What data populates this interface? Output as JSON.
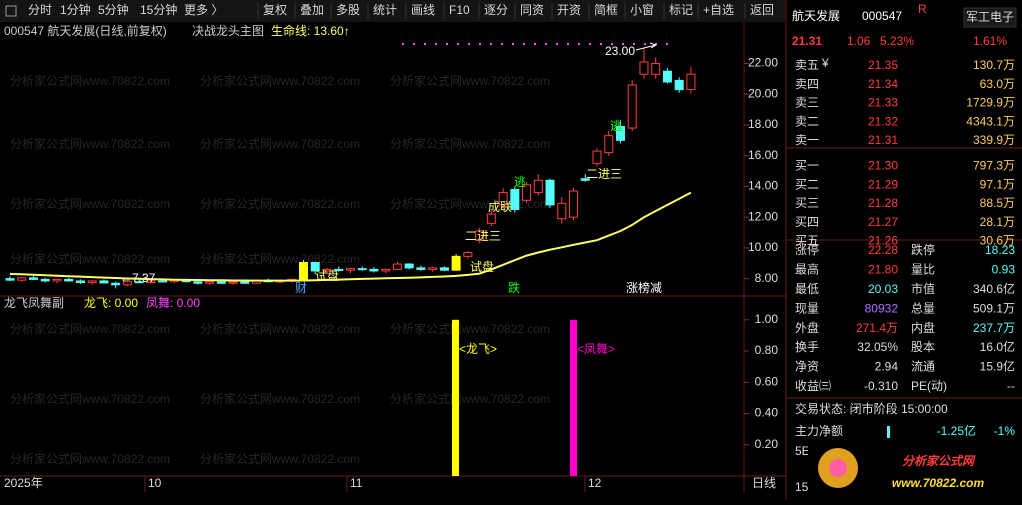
{
  "toolbar": [
    "分时",
    "1分钟",
    "5分钟",
    "15分钟",
    "更多 〉",
    "复权",
    "叠加",
    "多股",
    "统计",
    "画线",
    "F10",
    "逐分",
    "同资",
    "开资",
    "简框",
    "小窗",
    "标记",
    "+自选",
    "返回"
  ],
  "info": {
    "code_name": "000547 航天发展(日线,前复权)",
    "indicator": "决战龙头主图",
    "lifeline": "生命线: 13.60↑"
  },
  "watermark": "分析家公式网www.70822.com",
  "chart": {
    "yticks": [
      {
        "value": 22,
        "label": "22.00"
      },
      {
        "value": 20,
        "label": "20.00"
      },
      {
        "value": 18,
        "label": "18.00"
      },
      {
        "value": 16,
        "label": "16.00"
      },
      {
        "value": 14,
        "label": "14.00"
      },
      {
        "value": 12,
        "label": "12.00"
      },
      {
        "value": 10,
        "label": "10.00"
      },
      {
        "value": 8,
        "label": "8.00"
      }
    ],
    "ylim": [
      7.0,
      23.4
    ],
    "up_color": "#ff3c3c",
    "down_color": "#54fcfc",
    "highlight_color": "#ffff00",
    "highlighted": [
      25,
      38
    ],
    "line_color": "#ffff66",
    "candles": [
      [
        8.0,
        8.15,
        7.85,
        7.9
      ],
      [
        7.9,
        8.1,
        7.8,
        8.05
      ],
      [
        8.05,
        8.2,
        7.9,
        7.95
      ],
      [
        7.95,
        8.05,
        7.75,
        7.85
      ],
      [
        7.85,
        8.0,
        7.7,
        7.95
      ],
      [
        7.95,
        8.05,
        7.8,
        7.85
      ],
      [
        7.85,
        7.95,
        7.65,
        7.75
      ],
      [
        7.75,
        7.9,
        7.6,
        7.85
      ],
      [
        7.85,
        7.95,
        7.7,
        7.72
      ],
      [
        7.7,
        7.8,
        7.37,
        7.6
      ],
      [
        7.6,
        7.85,
        7.5,
        7.8
      ],
      [
        7.8,
        7.95,
        7.7,
        7.75
      ],
      [
        7.75,
        7.9,
        7.65,
        7.85
      ],
      [
        7.85,
        8.0,
        7.75,
        7.8
      ],
      [
        7.8,
        7.95,
        7.7,
        7.9
      ],
      [
        7.9,
        8.0,
        7.75,
        7.8
      ],
      [
        7.8,
        7.9,
        7.6,
        7.7
      ],
      [
        7.7,
        7.85,
        7.6,
        7.8
      ],
      [
        7.8,
        7.9,
        7.65,
        7.7
      ],
      [
        7.7,
        7.85,
        7.6,
        7.78
      ],
      [
        7.78,
        7.9,
        7.65,
        7.7
      ],
      [
        7.7,
        7.95,
        7.65,
        7.9
      ],
      [
        7.9,
        8.0,
        7.75,
        7.8
      ],
      [
        7.8,
        7.95,
        7.7,
        7.85
      ],
      [
        7.85,
        8.0,
        7.75,
        7.95
      ],
      [
        7.95,
        9.2,
        7.9,
        9.05
      ],
      [
        9.05,
        9.1,
        8.3,
        8.5
      ],
      [
        8.5,
        8.7,
        8.3,
        8.6
      ],
      [
        8.6,
        8.8,
        8.45,
        8.55
      ],
      [
        8.55,
        8.7,
        8.35,
        8.65
      ],
      [
        8.65,
        8.8,
        8.5,
        8.6
      ],
      [
        8.6,
        8.75,
        8.4,
        8.5
      ],
      [
        8.5,
        8.65,
        8.35,
        8.6
      ],
      [
        8.6,
        9.1,
        8.55,
        8.95
      ],
      [
        8.95,
        9.0,
        8.6,
        8.7
      ],
      [
        8.7,
        8.85,
        8.5,
        8.6
      ],
      [
        8.6,
        8.75,
        8.45,
        8.7
      ],
      [
        8.7,
        8.8,
        8.5,
        8.55
      ],
      [
        8.55,
        9.6,
        8.5,
        9.45
      ],
      [
        9.45,
        9.8,
        9.3,
        9.7
      ],
      [
        10.5,
        11.3,
        10.3,
        11.1
      ],
      [
        11.6,
        12.4,
        11.4,
        12.2
      ],
      [
        12.8,
        13.9,
        12.6,
        13.6
      ],
      [
        13.8,
        14.0,
        12.3,
        12.5
      ],
      [
        13.1,
        14.3,
        12.9,
        14.1
      ],
      [
        13.6,
        14.8,
        13.4,
        14.4
      ],
      [
        14.4,
        14.5,
        12.6,
        12.8
      ],
      [
        11.9,
        13.3,
        11.6,
        12.9
      ],
      [
        12.0,
        13.9,
        11.8,
        13.7
      ],
      [
        14.5,
        14.8,
        14.3,
        14.4
      ],
      [
        15.5,
        16.5,
        15.3,
        16.3
      ],
      [
        16.2,
        17.6,
        16.0,
        17.3
      ],
      [
        17.9,
        18.3,
        16.8,
        17.0
      ],
      [
        17.8,
        20.9,
        17.6,
        20.6
      ],
      [
        21.3,
        23.0,
        21.0,
        22.1
      ],
      [
        21.3,
        22.4,
        21.0,
        22.0
      ],
      [
        21.5,
        21.7,
        20.7,
        20.8
      ],
      [
        20.9,
        21.1,
        20.1,
        20.3
      ],
      [
        20.3,
        21.8,
        20.03,
        21.31
      ]
    ],
    "lifeline": [
      8.3,
      8.28,
      8.25,
      8.22,
      8.19,
      8.16,
      8.13,
      8.1,
      8.07,
      8.04,
      8.01,
      7.99,
      7.97,
      7.95,
      7.93,
      7.92,
      7.91,
      7.9,
      7.89,
      7.88,
      7.88,
      7.87,
      7.87,
      7.87,
      7.87,
      7.88,
      7.9,
      7.92,
      7.94,
      7.96,
      7.98,
      8.0,
      8.02,
      8.04,
      8.06,
      8.08,
      8.11,
      8.14,
      8.18,
      8.24,
      8.33,
      8.6,
      8.9,
      9.2,
      9.5,
      9.7,
      9.88,
      10.04,
      10.2,
      10.35,
      10.5,
      10.8,
      11.1,
      11.5,
      12.0,
      12.4,
      12.8,
      13.2,
      13.6
    ],
    "annotations": [
      {
        "text": "←7.37",
        "color": "#ffffff"
      },
      {
        "text": "试盘",
        "color": "#ffff66"
      },
      {
        "text": "试盘",
        "color": "#ffff66"
      },
      {
        "text": "二进三",
        "color": "#ffff66"
      },
      {
        "text": "成联",
        "color": "#ffff66"
      },
      {
        "text": "逃",
        "color": "#00ff00"
      },
      {
        "text": "二进三",
        "color": "#ffff66"
      },
      {
        "text": "逃",
        "color": "#00ff00"
      },
      {
        "text": "23.00",
        "color": "#ffffff"
      },
      {
        "text": "财",
        "color": "#4aa8ff"
      },
      {
        "text": "跌",
        "color": "#00ff00"
      },
      {
        "text": "涨榜减",
        "color": "#ffffff"
      }
    ]
  },
  "indicator": {
    "title": "龙飞凤舞副",
    "longfei": "龙飞: 0.00",
    "fengwu": "凤舞: 0.00",
    "yticks": [
      {
        "value": 1,
        "label": "1.00"
      },
      {
        "value": 0.8,
        "label": "0.80"
      },
      {
        "value": 0.6,
        "label": "0.60"
      },
      {
        "value": 0.4,
        "label": "0.40"
      },
      {
        "value": 0.2,
        "label": "0.20"
      }
    ],
    "ylim": [
      0,
      1.05
    ],
    "bars": [
      {
        "label": "<龙飞>",
        "value": 1,
        "color": "#ffff00"
      },
      {
        "label": "<凤舞>",
        "value": 1,
        "color": "#ff00cc"
      }
    ]
  },
  "timeaxis": [
    "2025年",
    "10",
    "11",
    "12",
    "日线"
  ],
  "quote": {
    "name": "航天发展",
    "code": "000547",
    "flag": "R",
    "sector": "军工电子",
    "sector_change": "1.61%",
    "price": "21.31",
    "change": "1.06",
    "pct": "5.23%",
    "currency": "¥",
    "book": [
      [
        "卖五",
        "21.35",
        "130.7万"
      ],
      [
        "卖四",
        "21.34",
        "63.0万"
      ],
      [
        "卖三",
        "21.33",
        "1729.9万"
      ],
      [
        "卖二",
        "21.32",
        "4343.1万"
      ],
      [
        "卖一",
        "21.31",
        "339.9万"
      ],
      [
        "买一",
        "21.30",
        "797.3万"
      ],
      [
        "买二",
        "21.29",
        "97.1万"
      ],
      [
        "买三",
        "21.28",
        "88.5万"
      ],
      [
        "买四",
        "21.27",
        "28.1万"
      ],
      [
        "买五",
        "21.26",
        "30.6万"
      ]
    ],
    "stats": [
      [
        "涨停",
        "22.28",
        "跌停",
        "18.23"
      ],
      [
        "最高",
        "21.80",
        "量比",
        "0.93"
      ],
      [
        "最低",
        "20.03",
        "市值",
        "340.6亿"
      ],
      [
        "现量",
        "80932",
        "总量",
        "509.1万"
      ],
      [
        "外盘",
        "271.4万",
        "内盘",
        "237.7万"
      ],
      [
        "换手",
        "32.05%",
        "股本",
        "16.0亿"
      ],
      [
        "净资",
        "2.94",
        "流通",
        "15.9亿"
      ],
      [
        "收益㈢",
        "-0.310",
        "PE(动)",
        "--"
      ]
    ],
    "status": "交易状态: 闭市阶段 15:00:00",
    "flow_label": "主力净额",
    "flow_value": "-1.25亿",
    "flow_pct": "-1%",
    "row5": "5E",
    "row15": "15",
    "logo": "分析家公式网",
    "logo_url": "www.70822.com"
  }
}
